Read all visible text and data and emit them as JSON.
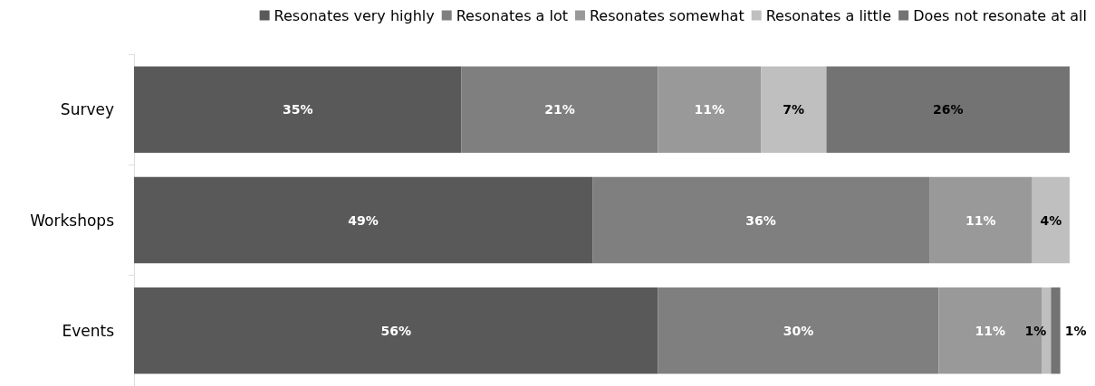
{
  "chart_data": {
    "type": "bar",
    "orientation": "horizontal",
    "stacked": true,
    "legend": "top right",
    "tick_labels": "y",
    "xlim": [
      0,
      100
    ],
    "categories": [
      "Survey",
      "Workshops",
      "Events"
    ],
    "series": [
      {
        "name": "Resonates very highly",
        "color": "#595959",
        "values": [
          35,
          49,
          56
        ],
        "value_labels": [
          "35%",
          "49%",
          "56%"
        ]
      },
      {
        "name": "Resonates a lot",
        "color": "#7f7f7f",
        "values": [
          21,
          36,
          30
        ],
        "value_labels": [
          "21%",
          "36%",
          "30%"
        ]
      },
      {
        "name": "Resonates somewhat",
        "color": "#999999",
        "values": [
          11,
          11,
          11
        ],
        "value_labels": [
          "11%",
          "11%",
          "11%"
        ]
      },
      {
        "name": "Resonates a little",
        "color": "#bfbfbf",
        "values": [
          7,
          4,
          1
        ],
        "value_labels": [
          "7%",
          "4%",
          "1%"
        ]
      },
      {
        "name": "Does not resonate at all",
        "color": "#737373",
        "values": [
          26,
          null,
          1
        ],
        "value_labels": [
          "26%",
          null,
          "1%"
        ]
      }
    ]
  }
}
